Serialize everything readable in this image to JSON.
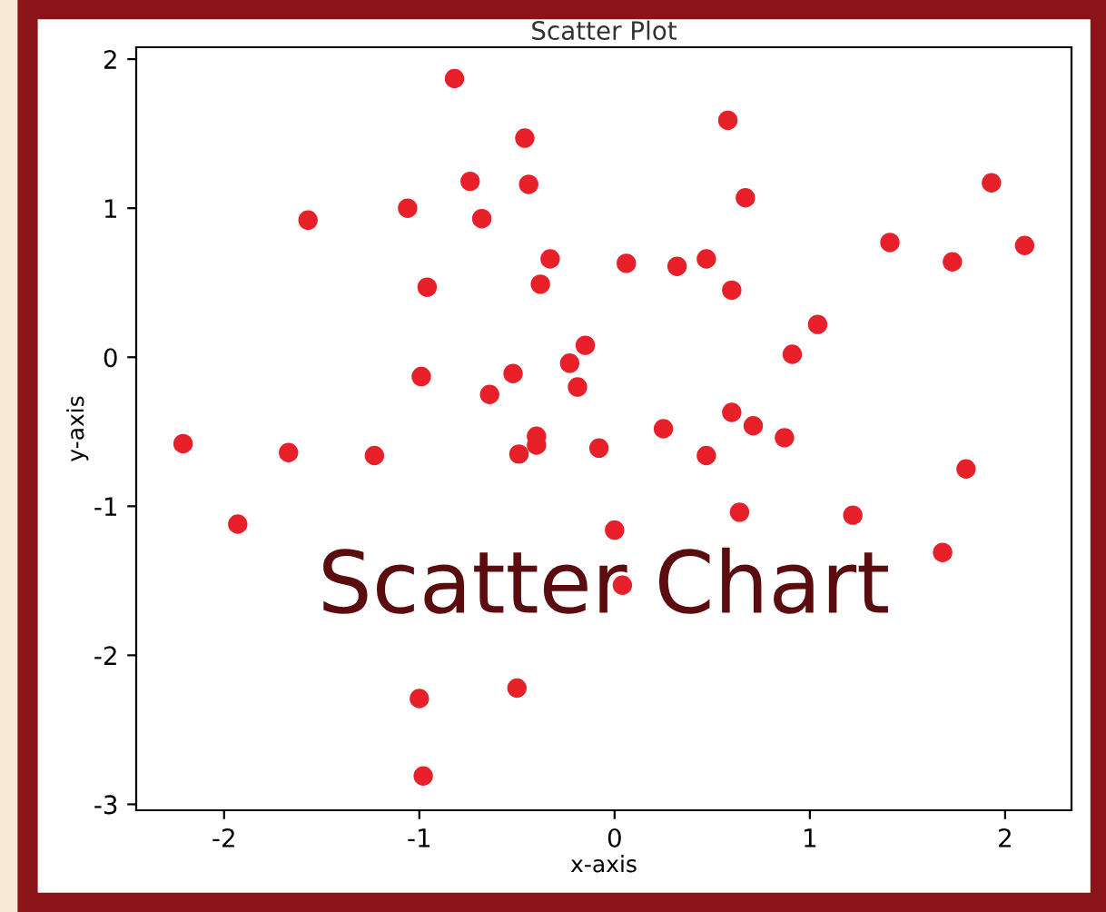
{
  "chart_data": {
    "type": "scatter",
    "title": "Scatter Plot",
    "xlabel": "x-axis",
    "ylabel": "y-axis",
    "annotations": [
      "Scatter Chart"
    ],
    "x": [
      -0.82,
      -1.57,
      -1.06,
      -0.74,
      -0.68,
      -0.46,
      -0.44,
      -0.33,
      -0.38,
      -0.96,
      0.06,
      0.32,
      0.47,
      0.58,
      0.67,
      0.6,
      1.41,
      1.73,
      1.93,
      2.1,
      -2.21,
      -1.93,
      -1.67,
      -1.23,
      -0.99,
      -0.64,
      -0.52,
      -0.49,
      -0.4,
      -0.4,
      -0.23,
      -0.15,
      -0.19,
      -0.08,
      0.0,
      0.04,
      0.25,
      0.47,
      0.64,
      0.6,
      0.71,
      0.87,
      0.91,
      1.04,
      1.22,
      1.68,
      1.8,
      -1.0,
      -0.5,
      -0.98
    ],
    "series": [
      {
        "color": "#e8202a",
        "values": [
          1.87,
          0.92,
          1.0,
          1.18,
          0.93,
          1.47,
          1.16,
          0.66,
          0.49,
          0.47,
          0.63,
          0.61,
          0.66,
          1.59,
          1.07,
          0.45,
          0.77,
          0.64,
          1.17,
          0.75,
          -0.58,
          -1.12,
          -0.64,
          -0.66,
          -0.13,
          -0.25,
          -0.11,
          -0.65,
          -0.53,
          -0.59,
          -0.04,
          0.08,
          -0.2,
          -0.61,
          -1.16,
          -1.53,
          -0.48,
          -0.66,
          -1.04,
          -0.37,
          -0.46,
          -0.54,
          0.02,
          0.22,
          -1.06,
          -1.31,
          -0.75,
          -2.29,
          -2.22,
          -2.81
        ]
      }
    ],
    "xlim": [
      -2.45,
      2.34
    ],
    "ylim": [
      -3.04,
      2.08
    ],
    "xticks": [
      -2,
      -1,
      0,
      1,
      2
    ],
    "yticks": [
      -3,
      -2,
      -1,
      0,
      1,
      2
    ],
    "grid": false,
    "legend": false,
    "marker": "circle"
  }
}
